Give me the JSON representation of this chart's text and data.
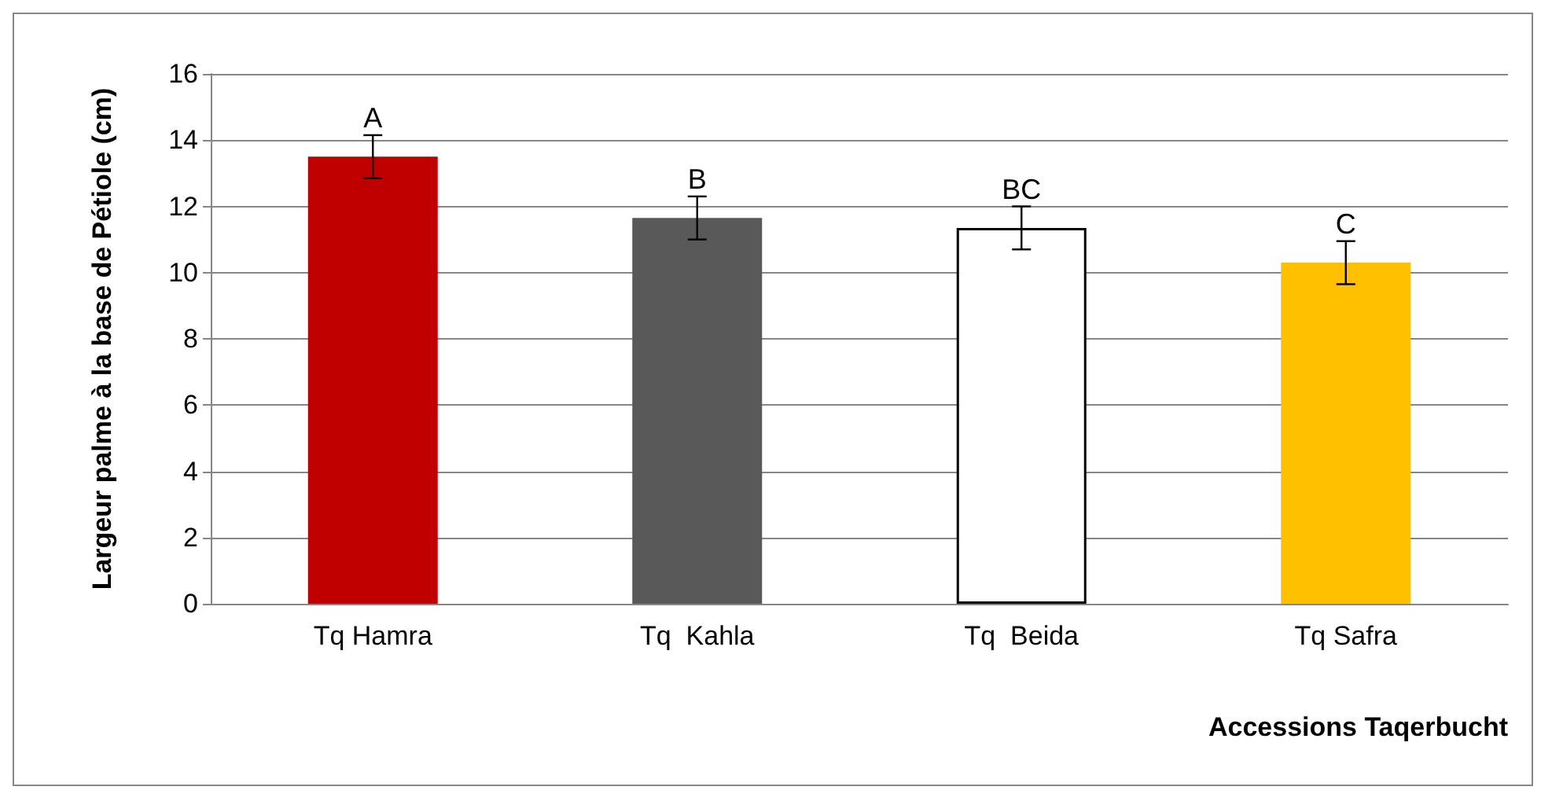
{
  "chart_data": {
    "type": "bar",
    "xlabel": "Accessions Taqerbucht",
    "ylabel": "Largeur palme à la base de Pétiole (cm)",
    "categories": [
      "Tq Hamra",
      "Tq  Kahla",
      "Tq  Beida",
      "Tq Safra"
    ],
    "values": [
      13.5,
      11.65,
      11.35,
      10.3
    ],
    "colors": [
      "#c00000",
      "#595959",
      "#ffffff",
      "#ffc000"
    ],
    "errors": [
      0.65,
      0.65,
      0.65,
      0.65
    ],
    "ylim": [
      0,
      16
    ],
    "yticks": [
      0,
      2,
      4,
      6,
      8,
      10,
      12,
      14,
      16
    ],
    "grid": "y",
    "annotations": [
      {
        "text": "A",
        "x": "Tq Hamra",
        "y": 14.15
      },
      {
        "text": "B",
        "x": "Tq  Kahla",
        "y": 12.3
      },
      {
        "text": "BC",
        "x": "Tq  Beida",
        "y": 12.0
      },
      {
        "text": "C",
        "x": "Tq Safra",
        "y": 10.95
      }
    ]
  }
}
